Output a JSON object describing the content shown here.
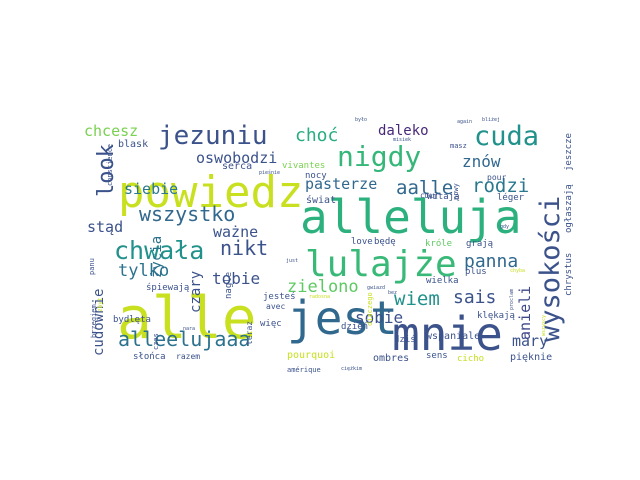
{
  "wordcloud": {
    "words": [
      {
        "text": "alle",
        "color": "#c8e020"
      },
      {
        "text": "powiedz",
        "color": "#c8e020"
      },
      {
        "text": "alleluja",
        "color": "#2cb17e"
      },
      {
        "text": "mnie",
        "color": "#3b528b"
      },
      {
        "text": "jest",
        "color": "#31688e"
      },
      {
        "text": "lulajże",
        "color": "#38b977"
      },
      {
        "text": "wysokości",
        "color": "#3b528b"
      },
      {
        "text": "chwała",
        "color": "#21918c"
      },
      {
        "text": "jezuniu",
        "color": "#3b528b"
      },
      {
        "text": "nigdy",
        "color": "#35b779"
      },
      {
        "text": "cuda",
        "color": "#21918c"
      },
      {
        "text": "alleelujaaa",
        "color": "#2c728e"
      },
      {
        "text": "wszystko",
        "color": "#31688e"
      },
      {
        "text": "look",
        "color": "#3b528b"
      },
      {
        "text": "aalle",
        "color": "#31688e"
      },
      {
        "text": "rodzi",
        "color": "#2a788e"
      },
      {
        "text": "nikt",
        "color": "#3b528b"
      },
      {
        "text": "zielono",
        "color": "#5ec962"
      },
      {
        "text": "wiem",
        "color": "#21918c"
      },
      {
        "text": "sais",
        "color": "#3b528b"
      },
      {
        "text": "panna",
        "color": "#31688e"
      },
      {
        "text": "tylko",
        "color": "#2c728e"
      },
      {
        "text": "choć",
        "color": "#27ad81"
      },
      {
        "text": "chcesz",
        "color": "#7ad151"
      },
      {
        "text": "oswobodzi",
        "color": "#3b528b"
      },
      {
        "text": "daleko",
        "color": "#482878"
      },
      {
        "text": "znów",
        "color": "#31688e"
      },
      {
        "text": "pasterze",
        "color": "#31688e"
      },
      {
        "text": "siebie",
        "color": "#2a788e"
      },
      {
        "text": "tobie",
        "color": "#3b528b"
      },
      {
        "text": "ważne",
        "color": "#3b528b"
      },
      {
        "text": "stąd",
        "color": "#3b528b"
      },
      {
        "text": "sobie",
        "color": "#3b528b"
      },
      {
        "text": "mary",
        "color": "#3b528b"
      },
      {
        "text": "anieli",
        "color": "#3e4989"
      },
      {
        "text": "cudownie",
        "color": "#3b528b"
      },
      {
        "text": "czary",
        "color": "#3b528b"
      },
      {
        "text": "życia",
        "color": "#2c728e"
      },
      {
        "text": "dzień",
        "color": "#3b528b"
      },
      {
        "text": "blask",
        "color": "#3b528b"
      },
      {
        "text": "serca",
        "color": "#3b528b"
      },
      {
        "text": "vivantes",
        "color": "#7ad151"
      },
      {
        "text": "nocy",
        "color": "#3b528b"
      },
      {
        "text": "świat",
        "color": "#3b528b"
      },
      {
        "text": "witają",
        "color": "#3b528b"
      },
      {
        "text": "léger",
        "color": "#3b528b"
      },
      {
        "text": "jeszcze",
        "color": "#3b528b"
      },
      {
        "text": "chrystus",
        "color": "#3b528b"
      },
      {
        "text": "ogłaszają",
        "color": "#3b528b"
      },
      {
        "text": "conscience",
        "color": "#3b528b"
      },
      {
        "text": "śpiewają",
        "color": "#3b528b"
      },
      {
        "text": "bydlęta",
        "color": "#3b528b"
      },
      {
        "text": "nagle",
        "color": "#3b528b"
      },
      {
        "text": "jesteś",
        "color": "#3b528b"
      },
      {
        "text": "love",
        "color": "#3b528b"
      },
      {
        "text": "będę",
        "color": "#3b528b"
      },
      {
        "text": "króle",
        "color": "#5ec962"
      },
      {
        "text": "grają",
        "color": "#3b528b"
      },
      {
        "text": "plus",
        "color": "#3b528b"
      },
      {
        "text": "wielka",
        "color": "#3b528b"
      },
      {
        "text": "klękają",
        "color": "#3b528b"
      },
      {
        "text": "wspaniale",
        "color": "#3b528b"
      },
      {
        "text": "więc",
        "color": "#3b528b"
      },
      {
        "text": "teraz",
        "color": "#3b528b"
      },
      {
        "text": "słońca",
        "color": "#3b528b"
      },
      {
        "text": "razem",
        "color": "#3b528b"
      },
      {
        "text": "pourquoi",
        "color": "#c8e020"
      },
      {
        "text": "ombres",
        "color": "#3b528b"
      },
      {
        "text": "sens",
        "color": "#3b528b"
      },
      {
        "text": "cicho",
        "color": "#c8e020"
      },
      {
        "text": "pięknie",
        "color": "#3b528b"
      },
      {
        "text": "avec",
        "color": "#3b528b"
      },
      {
        "text": "dziś",
        "color": "#3b528b"
      },
      {
        "text": "amérique",
        "color": "#3b528b"
      },
      {
        "text": "panu",
        "color": "#3b528b"
      },
      {
        "text": "c&#339;ur",
        "color": "#3b528b"
      },
      {
        "text": "nowy",
        "color": "#3b528b"
      },
      {
        "text": "pour",
        "color": "#3b528b"
      },
      {
        "text": "brzegiem",
        "color": "#3b528b"
      },
      {
        "text": "czas",
        "color": "#3b528b"
      },
      {
        "text": "zbyt",
        "color": "#c8e020"
      },
      {
        "text": "diaczego",
        "color": "#c8e020"
      },
      {
        "text": "ciężkim",
        "color": "#3b528b"
      },
      {
        "text": "masz",
        "color": "#3b528b"
      },
      {
        "text": "again",
        "color": "#3b528b"
      },
      {
        "text": "bliżej",
        "color": "#3b528b"
      },
      {
        "text": "chyba",
        "color": "#c8e020"
      },
      {
        "text": "proclam",
        "color": "#3b528b"
      },
      {
        "text": "nara",
        "color": "#3b528b"
      },
      {
        "text": "wszyscy",
        "color": "#c8e020"
      },
      {
        "text": "misiek",
        "color": "#3b528b"
      },
      {
        "text": "pieśnie",
        "color": "#3b528b"
      },
      {
        "text": "gwiazd",
        "color": "#3b528b"
      },
      {
        "text": "just",
        "color": "#3b528b"
      },
      {
        "text": "radosna",
        "color": "#c8e020"
      },
      {
        "text": "bez",
        "color": "#3b528b"
      },
      {
        "text": "gdy",
        "color": "#3b528b"
      },
      {
        "text": "było",
        "color": "#3b528b"
      }
    ]
  }
}
